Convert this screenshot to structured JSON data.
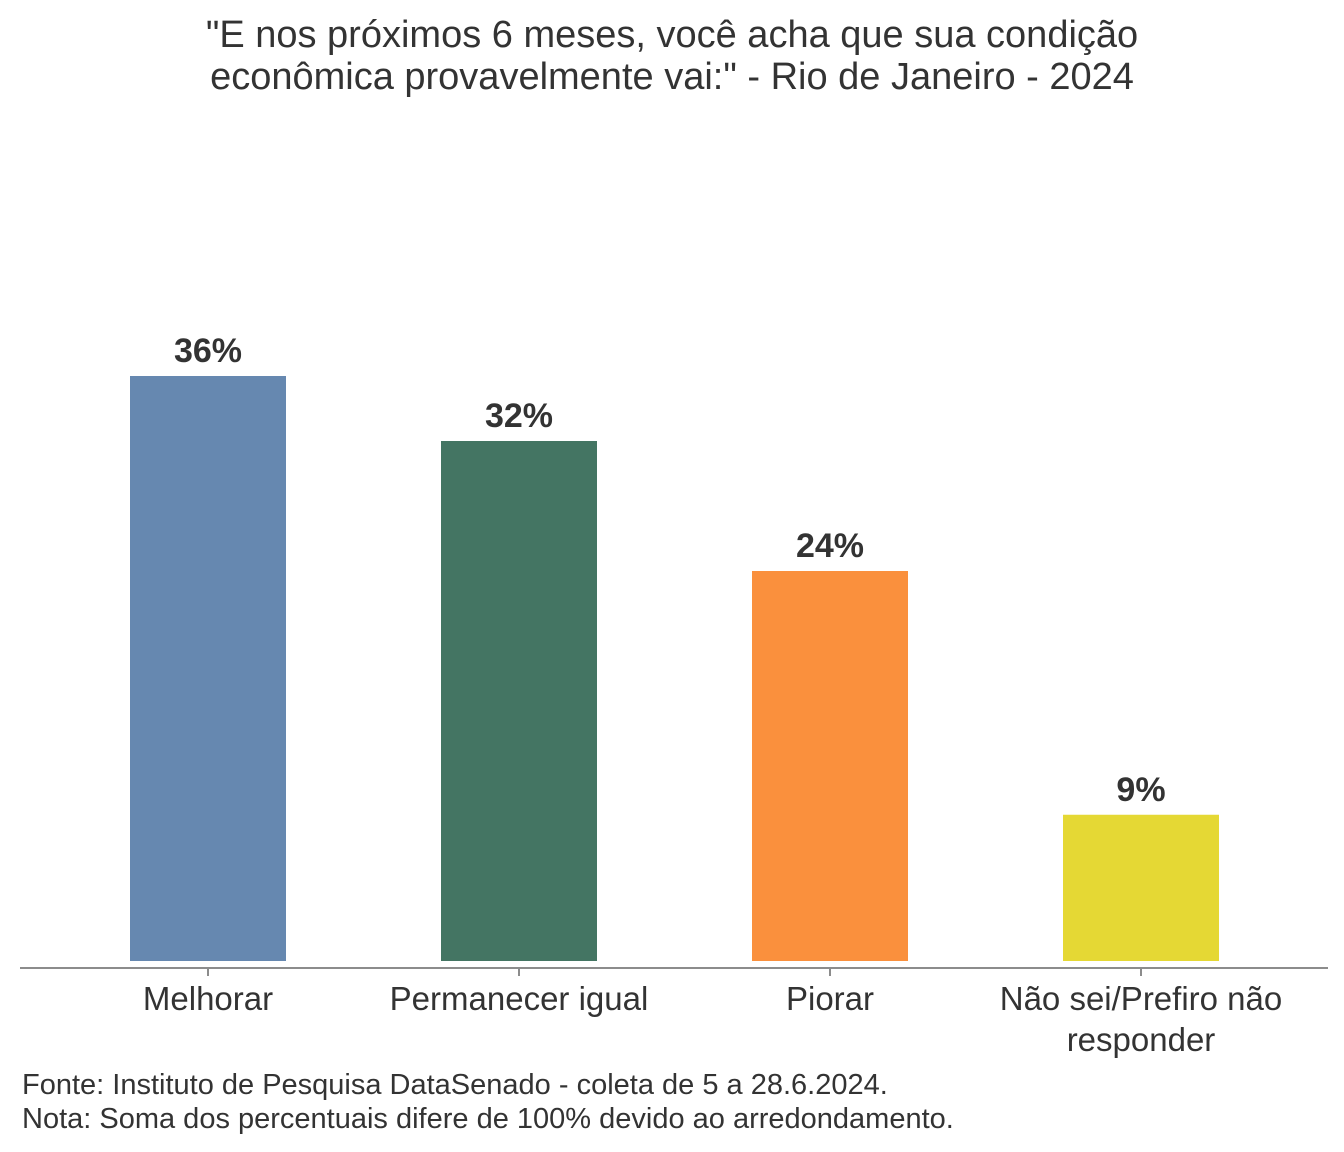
{
  "chart_data": {
    "type": "bar",
    "title_lines": [
      "\"E nos próximos 6 meses, você acha que sua condição",
      "econômica provavelmente vai:\" - Rio de Janeiro - 2024"
    ],
    "categories": [
      [
        "Melhorar"
      ],
      [
        "Permanecer igual"
      ],
      [
        "Piorar"
      ],
      [
        "Não sei/Prefiro não",
        "responder"
      ]
    ],
    "values": [
      36,
      32,
      24,
      9
    ],
    "value_labels": [
      "36%",
      "32%",
      "24%",
      "9%"
    ],
    "colors": [
      "#6688b0",
      "#447563",
      "#fa903d",
      "#e5d834"
    ],
    "ylim": [
      0,
      36
    ],
    "xlabel": "",
    "ylabel": "",
    "grid": false
  },
  "footer": {
    "source": "Fonte: Instituto de Pesquisa DataSenado - coleta de 5 a 28.6.2024.",
    "note": "Nota: Soma dos percentuais difere de 100% devido ao arredondamento."
  }
}
